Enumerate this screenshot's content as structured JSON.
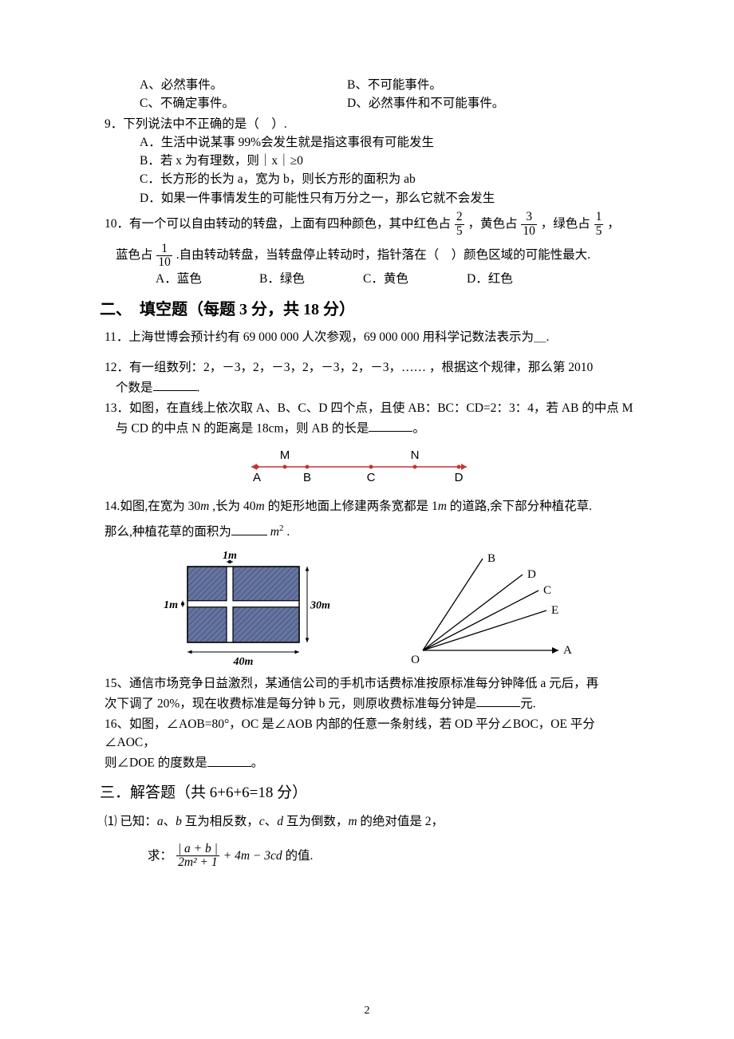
{
  "q8_options": {
    "a": "A、必然事件。",
    "b": "B、不可能事件。",
    "c": "C、不确定事件。",
    "d": "D、必然事件和不可能事件。"
  },
  "q9": {
    "stem": "9．下列说法中不正确的是（　）.",
    "a": "A．生活中说某事 99%会发生就是指这事很有可能发生",
    "b": "B．若 x 为有理数，则｜x｜≥0",
    "c": "C．长方形的长为 a，宽为 b，则长方形的面积为 ab",
    "d": "D．如果一件事情发生的可能性只有万分之一，那么它就不会发生"
  },
  "q10": {
    "stem_pre": "10．有一个可以自由转动的转盘，上面有四种颜色，其中红色占",
    "stem_mid1": "，黄色占",
    "stem_mid2": "，绿色占",
    "stem_mid3": "，",
    "line2_pre": "蓝色占",
    "line2_post": ".自由转动转盘，当转盘停止转动时，指针落在（　）颜色区域的可能性最大.",
    "frac_red": {
      "num": "2",
      "den": "5"
    },
    "frac_yellow": {
      "num": "3",
      "den": "10"
    },
    "frac_green": {
      "num": "1",
      "den": "5"
    },
    "frac_blue": {
      "num": "1",
      "den": "10"
    },
    "a": "A．蓝色",
    "b": "B．绿色",
    "c": "C．黄色",
    "d": "D．红色"
  },
  "section2_title": "二、　填空题（每题 3 分，共 18 分）",
  "q11": "11．上海世博会预计约有 69 000 000 人次参观，69 000 000 用科学记数法表示为＿.",
  "q12": {
    "line1": "12．有一组数列：2，－3，2，－3，2，－3，2，－3，…… ，根据这个规律，那么第 2010",
    "line2_pre": "个数是",
    "line2_post": "."
  },
  "q13": {
    "line1": "13．如图，在直线上依次取 A、B、C、D 四个点，且使 AB：BC：CD=2：3：4，若 AB 的中点 M",
    "line2_pre": "与 CD 的中点 N 的距离是 18cm，则 AB 的长是",
    "line2_post": "。"
  },
  "fig13": {
    "labels": {
      "M": "M",
      "N": "N",
      "A": "A",
      "B": "B",
      "C": "C",
      "D": "D"
    },
    "line_color": "#c83232",
    "point_color": "#c83232",
    "points_x": [
      12,
      47,
      75,
      155,
      210,
      265
    ],
    "mn_x": [
      47,
      210
    ],
    "label_font": 15
  },
  "q14": {
    "line1_pre": "14.如图,在宽为 30",
    "line1_mid": " ,长为 40",
    "line1_post": " 的矩形地面上修建两条宽都是 1",
    "line1_end": " 的道路,余下部分种植花草.",
    "line2_pre": "那么,种植花草的面积为",
    "line2_unit": "m",
    "line2_post": " ."
  },
  "fig14a": {
    "w_label": "1m",
    "w_label2": "1m",
    "right_label": "30m",
    "bottom_label": "40m",
    "fill_color": "#6575a2",
    "border_color": "#000000",
    "arrow_color": "#000000"
  },
  "fig14b": {
    "O": "O",
    "A": "A",
    "B": "B",
    "C": "C",
    "D": "D",
    "E": "E",
    "line_color": "#000000"
  },
  "q15": {
    "line1": "15、通信市场竞争日益激烈，某通信公司的手机市话费标准按原标准每分钟降低 a 元后，再",
    "line2_pre": "次下调了 20%，现在收费标准是每分钟 b 元，则原收费标准每分钟是",
    "line2_post": "元."
  },
  "q16": {
    "line1": "16、如图，∠AOB=80°，OC 是∠AOB 内部的任意一条射线，若 OD 平分∠BOC，OE 平分∠AOC，",
    "line2_pre": "则∠DOE 的度数是",
    "line2_post": "。"
  },
  "section3_title": "三．解答题（共 6+6+6=18 分）",
  "q3_1": {
    "line1_pre": "⑴ 已知：",
    "line1_a": "a",
    "line1_sep1": "、",
    "line1_b": "b",
    "line1_mid1": " 互为相反数，",
    "line1_c": "c",
    "line1_sep2": "、",
    "line1_d": "d",
    "line1_mid2": " 互为倒数，",
    "line1_m": "m",
    "line1_end": " 的绝对值是 2，",
    "line2_pre": "求：",
    "frac_num": "| a + b |",
    "frac_den": "2m² + 1",
    "line2_mid": " + 4m − 3cd",
    "line2_end": " 的值."
  },
  "page_number": "2"
}
